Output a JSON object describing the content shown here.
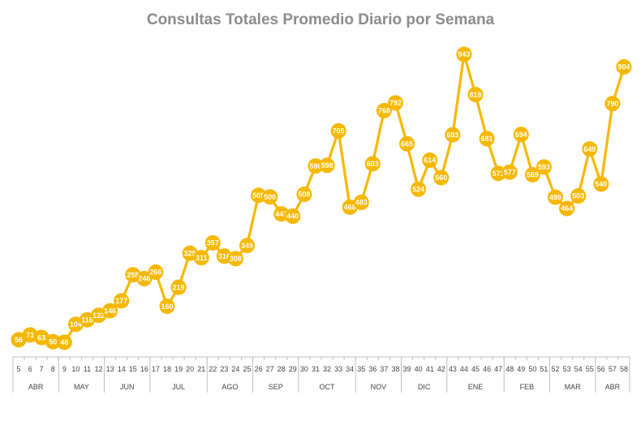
{
  "chart_data": {
    "type": "line",
    "title": "Consultas Totales Promedio Diario por Semana",
    "xlabel": "",
    "ylabel": "",
    "ylim": [
      0,
      1000
    ],
    "grid": false,
    "color": "#F5B800",
    "x": [
      5,
      6,
      7,
      8,
      9,
      10,
      11,
      12,
      13,
      14,
      15,
      16,
      17,
      18,
      19,
      20,
      21,
      22,
      23,
      24,
      25,
      26,
      27,
      28,
      29,
      30,
      31,
      32,
      33,
      34,
      35,
      36,
      37,
      38,
      39,
      40,
      41,
      42,
      43,
      44,
      45,
      46,
      47,
      48,
      49,
      50,
      51,
      52,
      53,
      54,
      55,
      56,
      57,
      58
    ],
    "values": [
      56,
      71,
      63,
      50,
      48,
      104,
      118,
      132,
      146,
      177,
      258,
      246,
      266,
      160,
      219,
      325,
      311,
      357,
      316,
      308,
      349,
      505,
      500,
      447,
      440,
      508,
      596,
      598,
      705,
      468,
      483,
      603,
      768,
      792,
      665,
      524,
      614,
      560,
      693,
      943,
      818,
      681,
      573,
      577,
      694,
      569,
      593,
      499,
      464,
      503,
      649,
      540,
      790,
      904
    ],
    "months": [
      {
        "label": "ABR",
        "from": 5,
        "to": 8
      },
      {
        "label": "MAY",
        "from": 9,
        "to": 12
      },
      {
        "label": "JUN",
        "from": 13,
        "to": 16
      },
      {
        "label": "JUL",
        "from": 17,
        "to": 21
      },
      {
        "label": "AGO",
        "from": 22,
        "to": 25
      },
      {
        "label": "SEP",
        "from": 26,
        "to": 29
      },
      {
        "label": "OCT",
        "from": 30,
        "to": 34
      },
      {
        "label": "NOV",
        "from": 35,
        "to": 38
      },
      {
        "label": "DIC",
        "from": 39,
        "to": 42
      },
      {
        "label": "ENE",
        "from": 43,
        "to": 47
      },
      {
        "label": "FEB",
        "from": 48,
        "to": 51
      },
      {
        "label": "MAR",
        "from": 52,
        "to": 55
      },
      {
        "label": "ABR",
        "from": 56,
        "to": 58
      }
    ]
  }
}
